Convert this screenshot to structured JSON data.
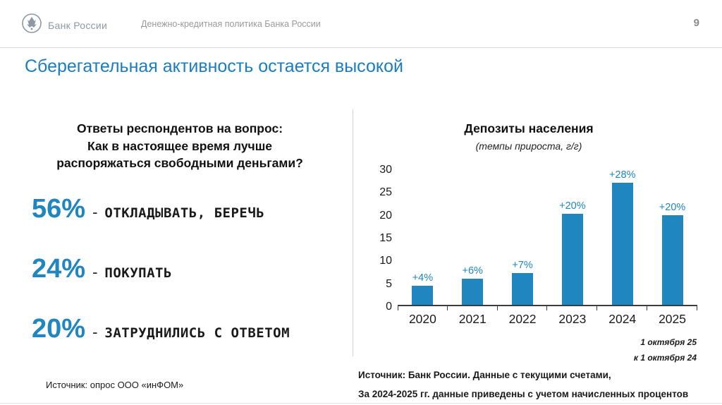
{
  "header": {
    "logo_text": "Банк России",
    "subtitle": "Денежно-кредитная политика Банка России",
    "page_number": "9"
  },
  "title": "Сберегательная активность остается высокой",
  "survey": {
    "question": "Ответы респондентов на вопрос:\nКак в настоящее время лучше\nраспоряжаться свободными деньгами?",
    "items": [
      {
        "percent": "56%",
        "dash": "-",
        "label": "ОТКЛАДЫВАТЬ, БЕРЕЧЬ"
      },
      {
        "percent": "24%",
        "dash": "-",
        "label": "ПОКУПАТЬ"
      },
      {
        "percent": "20%",
        "dash": "-",
        "label": "ЗАТРУДНИЛИСЬ С ОТВЕТОМ"
      }
    ],
    "source": "Источник: опрос ООО «инФОМ»"
  },
  "chart": {
    "title": "Депозиты населения",
    "subtitle": "(темпы прироста, г/г)",
    "note1": "1 октября 25",
    "note2": "к 1 октября 24",
    "source_line1": "Источник: Банк России. Данные с текущими счетами,",
    "source_line2": "За 2024-2025 гг. данные приведены с учетом начисленных процентов"
  },
  "chart_data": {
    "type": "bar",
    "title": "Депозиты населения",
    "subtitle": "(темпы прироста, г/г)",
    "categories": [
      "2020",
      "2021",
      "2022",
      "2023",
      "2024",
      "2025"
    ],
    "values": [
      4.2,
      5.8,
      7,
      20,
      28.3,
      19.6
    ],
    "labels": [
      "+4%",
      "+6%",
      "+7%",
      "+20%",
      "+28%",
      "+20%"
    ],
    "ylim": [
      0,
      30
    ],
    "yticks": [
      0,
      5,
      10,
      15,
      20,
      25,
      30
    ],
    "bar_color": "#1f86c0",
    "grid": false,
    "legend": "none"
  },
  "colors": {
    "accent": "#1f86c0",
    "title_blue": "#1a7dc2",
    "text": "#1a1a1a",
    "gray": "#9a9a9a"
  }
}
